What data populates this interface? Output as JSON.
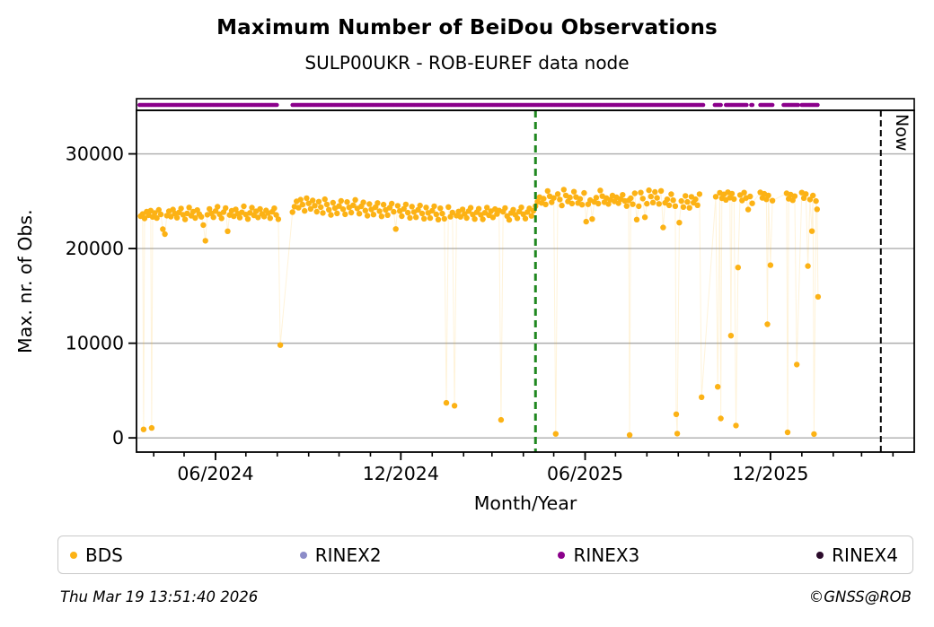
{
  "title": "Maximum Number of BeiDou Observations",
  "subtitle": "SULP00UKR - ROB-EUREF data node",
  "footer": {
    "timestamp": "Thu Mar 19 13:51:40 2026",
    "credit": "©GNSS@ROB"
  },
  "legend": [
    {
      "label": "BDS",
      "color": "#FCB215"
    },
    {
      "label": "RINEX2",
      "color": "#8C8CC8"
    },
    {
      "label": "RINEX3",
      "color": "#8B008B"
    },
    {
      "label": "RINEX4",
      "color": "#2B0B2B"
    }
  ],
  "chart_data": {
    "type": "scatter",
    "title": "Maximum Number of BeiDou Observations",
    "subtitle": "SULP00UKR - ROB-EUREF data node",
    "xlabel": "Month/Year",
    "ylabel": "Max. nr. of Obs.",
    "x_unit": "days since 2024-01-01",
    "xlim": [
      74,
      842
    ],
    "ylim": [
      -1500,
      34600
    ],
    "grid": "horizontal",
    "grid_color": "#ADADAD",
    "x_major_ticks": [
      {
        "day": 152,
        "label": "06/2024"
      },
      {
        "day": 335,
        "label": "12/2024"
      },
      {
        "day": 517,
        "label": "06/2025"
      },
      {
        "day": 700,
        "label": "12/2025"
      }
    ],
    "x_minor_tick_days": [
      91,
      121,
      152,
      182,
      213,
      244,
      274,
      305,
      335,
      366,
      397,
      425,
      456,
      486,
      517,
      547,
      578,
      609,
      639,
      670,
      700,
      731,
      762,
      790,
      821
    ],
    "y_ticks": [
      {
        "value": 0,
        "label": "0"
      },
      {
        "value": 10000,
        "label": "10000"
      },
      {
        "value": 20000,
        "label": "20000"
      },
      {
        "value": 30000,
        "label": "30000"
      }
    ],
    "vline_release": {
      "day": 468,
      "color": "#208820",
      "dash": [
        8,
        5
      ],
      "width": 3
    },
    "vline_now": {
      "day": 809,
      "label": "Now",
      "color": "#000000",
      "dash": [
        7,
        4
      ],
      "width": 2
    },
    "series": {
      "bds": {
        "label": "BDS",
        "color": "#FCB215",
        "line_alpha": 0.16,
        "marker_radius": 3.2,
        "segments": [
          {
            "start": 78,
            "step": 2,
            "values": [
              23420,
              23650,
              23180,
              23890,
              23520,
              24010,
              23340,
              23760,
              23220,
              24080,
              23610,
              22050,
              21520,
              23480,
              23940,
              23370,
              24120,
              23690,
              23260,
              23820,
              24230,
              23560,
              23080,
              23710,
              24340,
              23470,
              23900,
              23230,
              24060,
              23640,
              23350,
              22480,
              20820,
              23570,
              24190,
              23720,
              23310,
              23960,
              24410,
              23630,
              23190,
              23850,
              24280,
              21830,
              23540,
              23990,
              23410,
              24140,
              23680,
              23270,
              23830,
              24460,
              23590,
              23120,
              23770,
              24320,
              23500,
              23930,
              23290,
              24180,
              23660,
              23380,
              24030,
              23740,
              23210,
              23880,
              24250,
              23550,
              23100
            ]
          },
          {
            "start": 228,
            "step": 2,
            "values": [
              23850,
              24420,
              24980,
              24310,
              25160,
              24640,
              23980,
              25320,
              24770,
              24190,
              25080,
              24530,
              23890,
              24950,
              24380,
              23760,
              25210,
              24660,
              24100,
              23550,
              24840,
              24270,
              23710,
              24490,
              25030,
              24160,
              23620,
              24920,
              24350,
              23800,
              24580,
              25140,
              24230,
              23680,
              24460,
              24880,
              24020,
              23470,
              24700,
              24130,
              23590,
              24370,
              24810,
              23950,
              23400,
              24640,
              24080,
              23530,
              24310,
              24750,
              23880,
              22060,
              24520,
              23970,
              23420,
              24200,
              24660,
              23790,
              23240,
              24430,
              23860,
              23310,
              24090,
              24550,
              23700,
              23150,
              24340,
              23770,
              23220,
              24000,
              24470,
              23610,
              23060,
              24250,
              23690,
              23140
            ]
          },
          {
            "start": 382,
            "step": 2,
            "values": [
              24390,
              23360,
              23810
            ]
          },
          {
            "start": 390,
            "step": 2,
            "values": [
              23480,
              23910,
              23350,
              24140,
              23670,
              23230,
              23960,
              24310,
              23590,
              23120,
              23840,
              24210,
              23560,
              23090,
              23780,
              24330,
              23510,
              23940,
              23300,
              24170,
              23650,
              24020
            ]
          },
          {
            "start": 436,
            "step": 2,
            "values": [
              23880,
              24280,
              23440,
              23030,
              23760,
              24100,
              23570,
              23200,
              23900,
              24350,
              23630,
              23160,
              23860,
              24240,
              23450,
              23990
            ]
          },
          {
            "start": 468,
            "step": 2,
            "values": [
              24480,
              24950,
              25430,
              24820,
              25270,
              24660,
              26080,
              25520,
              24890,
              25340
            ]
          },
          {
            "start": 490,
            "step": 2,
            "values": [
              25760,
              25180,
              24550,
              26220,
              25610,
              24970,
              25400,
              24760,
              26010,
              25440,
              24810,
              25250,
              24630,
              25870,
              22840,
              24680,
              25120,
              23120,
              24930,
              25380,
              24750,
              26140,
              25530,
              24900,
              25330,
              24710,
              25160,
              25600,
              24980,
              25410,
              24790,
              25230,
              25670,
              25040,
              24490,
              25090
            ]
          },
          {
            "start": 562,
            "step": 2,
            "values": [
              25310,
              24680,
              25840,
              23060,
              24470,
              25910,
              25280,
              23310,
              24740,
              26160,
              25490,
              24860,
              25980,
              25350,
              24720,
              26090,
              22230,
              24830,
              25200,
              24570,
              25740,
              25110,
              24480
            ]
          },
          {
            "start": 610,
            "step": 2,
            "values": [
              22740,
              25020,
              24390,
              25560,
              24930,
              24300,
              25470,
              24840,
              25210,
              24580,
              25750
            ]
          }
        ],
        "cluster_points": [
          [
            646,
            25480
          ],
          [
            650,
            25890
          ],
          [
            652,
            25310
          ],
          [
            654,
            25720
          ],
          [
            656,
            25140
          ],
          [
            658,
            25950
          ],
          [
            660,
            25370
          ],
          [
            662,
            25800
          ],
          [
            664,
            25230
          ],
          [
            670,
            25660
          ],
          [
            672,
            25080
          ],
          [
            674,
            25910
          ],
          [
            676,
            25340
          ],
          [
            678,
            24120
          ],
          [
            680,
            25500
          ],
          [
            682,
            24770
          ],
          [
            690,
            25930
          ],
          [
            692,
            25350
          ],
          [
            694,
            25780
          ],
          [
            696,
            25200
          ],
          [
            698,
            25610
          ],
          [
            702,
            25060
          ],
          [
            716,
            25840
          ],
          [
            718,
            25260
          ],
          [
            720,
            25690
          ],
          [
            722,
            25110
          ],
          [
            724,
            25530
          ],
          [
            731,
            25910
          ],
          [
            733,
            25330
          ],
          [
            735,
            25760
          ],
          [
            739,
            25180
          ],
          [
            741,
            21840
          ],
          [
            742,
            25600
          ],
          [
            745,
            25020
          ],
          [
            746,
            24150
          ]
        ],
        "outlier_points": [
          [
            81,
            900
          ],
          [
            89,
            1050
          ],
          [
            216,
            9800
          ],
          [
            380,
            3700
          ],
          [
            388,
            3400
          ],
          [
            434,
            1900
          ],
          [
            488,
            420
          ],
          [
            561,
            300
          ],
          [
            607,
            2500
          ],
          [
            608,
            450
          ],
          [
            632,
            4300
          ],
          [
            648,
            5400
          ],
          [
            651,
            2050
          ],
          [
            661,
            10800
          ],
          [
            666,
            1300
          ],
          [
            668,
            18000
          ],
          [
            697,
            12000
          ],
          [
            700,
            18250
          ],
          [
            717,
            580
          ],
          [
            726,
            7750
          ],
          [
            737,
            18150
          ],
          [
            743,
            400
          ],
          [
            747,
            14900
          ]
        ]
      },
      "rinex2": {
        "label": "RINEX2",
        "color": "#8C8CC8",
        "points": []
      },
      "rinex3": {
        "label": "RINEX3",
        "color": "#8B008B",
        "strip_segments": [
          [
            77,
            213
          ],
          [
            228,
            634
          ],
          [
            645,
            652
          ],
          [
            656,
            677
          ],
          [
            681,
            683
          ],
          [
            690,
            703
          ],
          [
            713,
            728
          ],
          [
            731,
            747
          ]
        ],
        "strip_dot_spacing_days": 1.2
      },
      "rinex4": {
        "label": "RINEX4",
        "color": "#2B0B2B",
        "points": []
      }
    }
  }
}
